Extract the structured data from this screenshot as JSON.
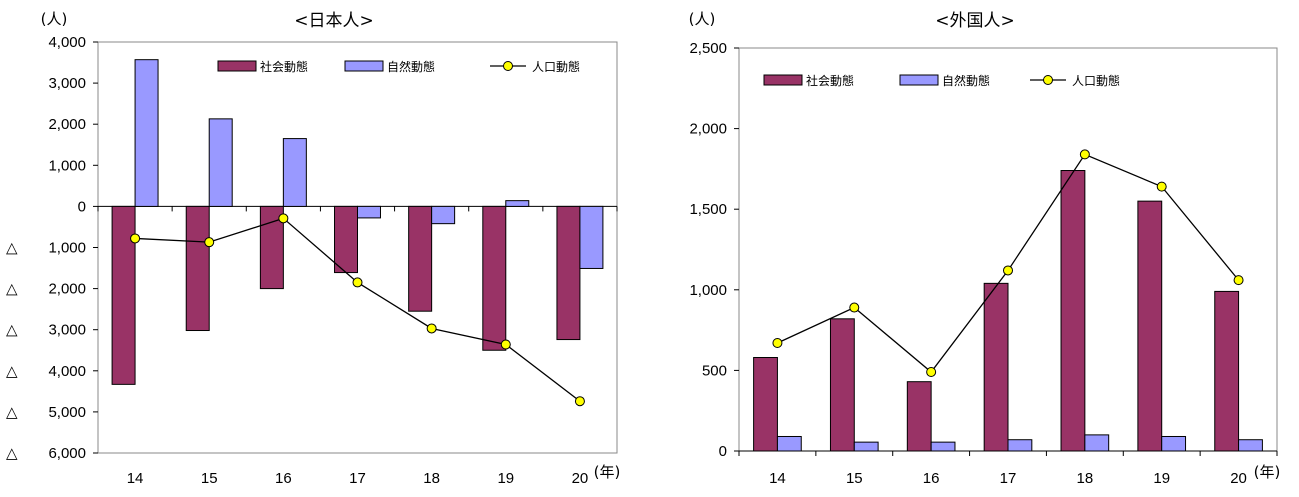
{
  "chart_data": [
    {
      "type": "bar",
      "title": "<日本人>",
      "ylabel": "(人)",
      "xlabel_unit": "(年)",
      "categories": [
        "14",
        "15",
        "16",
        "17",
        "18",
        "19",
        "20"
      ],
      "ylim": [
        -6000,
        4000
      ],
      "yticks": [
        4000,
        3000,
        2000,
        1000,
        0,
        -1000,
        -2000,
        -3000,
        -4000,
        -5000,
        -6000
      ],
      "ytick_labels": [
        "4,000",
        "3,000",
        "2,000",
        "1,000",
        "0",
        "△ 1,000",
        "△ 2,000",
        "△ 3,000",
        "△ 4,000",
        "△ 5,000",
        "△ 6,000"
      ],
      "legend_position": "top-right",
      "series": [
        {
          "name": "社会動態",
          "kind": "bar",
          "color": "#993366",
          "values": [
            -4330,
            -3020,
            -2000,
            -1610,
            -2550,
            -3500,
            -3240
          ]
        },
        {
          "name": "自然動態",
          "kind": "bar",
          "color": "#9999ff",
          "values": [
            3570,
            2130,
            1650,
            -280,
            -420,
            140,
            -1510
          ]
        },
        {
          "name": "人口動態",
          "kind": "line",
          "color": "#ffff00",
          "values": [
            -780,
            -870,
            -290,
            -1850,
            -2970,
            -3360,
            -4740
          ]
        }
      ]
    },
    {
      "type": "bar",
      "title": "<外国人>",
      "ylabel": "(人)",
      "xlabel_unit": "(年)",
      "categories": [
        "14",
        "15",
        "16",
        "17",
        "18",
        "19",
        "20"
      ],
      "ylim": [
        0,
        2500
      ],
      "yticks": [
        2500,
        2000,
        1500,
        1000,
        500,
        0
      ],
      "ytick_labels": [
        "2,500",
        "2,000",
        "1,500",
        "1,000",
        "500",
        "0"
      ],
      "legend_position": "top-left",
      "series": [
        {
          "name": "社会動態",
          "kind": "bar",
          "color": "#993366",
          "values": [
            580,
            820,
            430,
            1040,
            1740,
            1550,
            990
          ]
        },
        {
          "name": "自然動態",
          "kind": "bar",
          "color": "#9999ff",
          "values": [
            90,
            55,
            55,
            70,
            100,
            90,
            70
          ]
        },
        {
          "name": "人口動態",
          "kind": "line",
          "color": "#ffff00",
          "values": [
            670,
            890,
            490,
            1120,
            1840,
            1640,
            1060
          ]
        }
      ]
    }
  ]
}
